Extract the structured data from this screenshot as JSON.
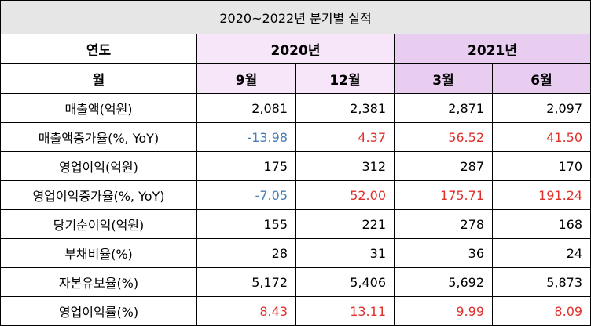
{
  "title": "2020~2022년 분기별 실적",
  "header": {
    "year_label": "연도",
    "month_label": "월",
    "years": [
      {
        "label": "2020년",
        "span": 2
      },
      {
        "label": "2021년",
        "span": 2
      }
    ],
    "quarters": [
      "9월",
      "12월",
      "3월",
      "6월"
    ]
  },
  "rows": [
    {
      "label": "매출액(억원)",
      "values": [
        "2,081",
        "2,381",
        "2,871",
        "2,097"
      ],
      "tones": [
        "",
        "",
        "",
        ""
      ]
    },
    {
      "label": "매출액증가율(%, YoY)",
      "values": [
        "-13.98",
        "4.37",
        "56.52",
        "41.50"
      ],
      "tones": [
        "neg",
        "pos",
        "pos",
        "pos"
      ]
    },
    {
      "label": "영업이익(억원)",
      "values": [
        "175",
        "312",
        "287",
        "170"
      ],
      "tones": [
        "",
        "",
        "",
        ""
      ]
    },
    {
      "label": "영업이익증가율(%, YoY)",
      "values": [
        "-7.05",
        "52.00",
        "175.71",
        "191.24"
      ],
      "tones": [
        "neg",
        "pos",
        "pos",
        "pos"
      ]
    },
    {
      "label": "당기순이익(억원)",
      "values": [
        "155",
        "221",
        "278",
        "168"
      ],
      "tones": [
        "",
        "",
        "",
        ""
      ]
    },
    {
      "label": "부채비율(%)",
      "values": [
        "28",
        "31",
        "36",
        "24"
      ],
      "tones": [
        "",
        "",
        "",
        ""
      ]
    },
    {
      "label": "자본유보율(%)",
      "values": [
        "5,172",
        "5,406",
        "5,692",
        "5,873"
      ],
      "tones": [
        "",
        "",
        "",
        ""
      ]
    },
    {
      "label": "영업이익률(%)",
      "values": [
        "8.43",
        "13.11",
        "9.99",
        "8.09"
      ],
      "tones": [
        "pos",
        "pos",
        "pos",
        "pos"
      ]
    }
  ],
  "colors": {
    "negative": "#4a7eb5",
    "positive": "#e0302c",
    "title_bg": "#e6e6e6",
    "year_2020_bg": "#f7e6fa",
    "year_2021_bg": "#e9cdf1"
  }
}
